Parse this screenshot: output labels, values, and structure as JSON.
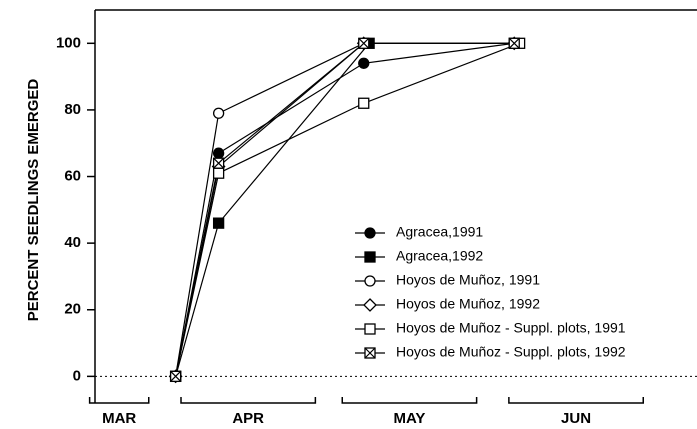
{
  "chart_data": {
    "type": "line",
    "ylabel": "PERCENT SEEDLINGS EMERGED",
    "xlim": [
      15,
      127
    ],
    "ylim": [
      -8,
      110
    ],
    "yticks": [
      0,
      20,
      40,
      60,
      80,
      100
    ],
    "zero_line": true,
    "months": [
      {
        "label": "MAR",
        "start": 14,
        "end": 25
      },
      {
        "label": "APR",
        "start": 31,
        "end": 56
      },
      {
        "label": "MAY",
        "start": 61,
        "end": 86
      },
      {
        "label": "JUN",
        "start": 92,
        "end": 117
      }
    ],
    "legend": "lower right",
    "series": [
      {
        "name": "Agracea,1991",
        "marker": "circle",
        "filled": true,
        "color": "#000000",
        "x": [
          30,
          38,
          65,
          93
        ],
        "values": [
          0,
          67,
          94,
          100
        ]
      },
      {
        "name": "Agracea,1992",
        "marker": "square",
        "filled": true,
        "color": "#000000",
        "x": [
          30,
          38,
          66,
          93
        ],
        "values": [
          0,
          46,
          100,
          100
        ]
      },
      {
        "name": "Hoyos de Muñoz, 1991",
        "marker": "circle",
        "filled": false,
        "color": "#000000",
        "x": [
          30,
          38,
          65,
          93
        ],
        "values": [
          0,
          79,
          100,
          100
        ]
      },
      {
        "name": "Hoyos de Muñoz, 1992",
        "marker": "diamond",
        "filled": false,
        "color": "#000000",
        "x": [
          30,
          38,
          65,
          93
        ],
        "values": [
          0,
          63,
          100,
          100
        ]
      },
      {
        "name": "Hoyos de Muñoz - Suppl. plots, 1991",
        "marker": "square",
        "filled": false,
        "color": "#000000",
        "x": [
          30,
          38,
          65,
          94
        ],
        "values": [
          0,
          61,
          82,
          100
        ]
      },
      {
        "name": "Hoyos de Muñoz - Suppl. plots, 1992",
        "marker": "xsquare",
        "filled": false,
        "color": "#000000",
        "x": [
          30,
          38,
          65,
          93
        ],
        "values": [
          0,
          64,
          100,
          100
        ]
      }
    ]
  }
}
